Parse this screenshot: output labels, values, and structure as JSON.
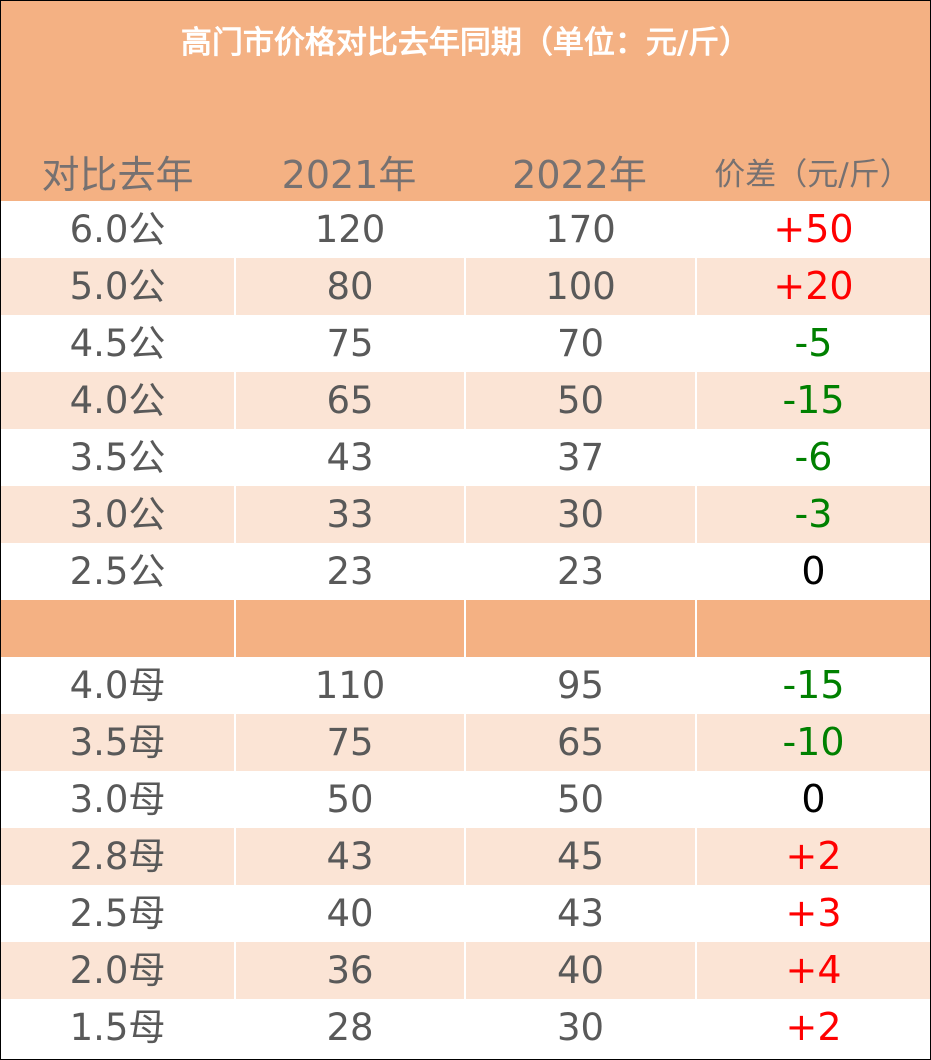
{
  "title": "高门市价格对比去年同期（单位：元/斤）",
  "headers": {
    "category": "对比去年",
    "year2021": "2021年",
    "year2022": "2022年",
    "diff": "价差（元/斤）"
  },
  "rows": [
    {
      "label": "6.0公",
      "y2021": "120",
      "y2022": "170",
      "diff": "+50"
    },
    {
      "label": "5.0公",
      "y2021": "80",
      "y2022": "100",
      "diff": "+20"
    },
    {
      "label": "4.5公",
      "y2021": "75",
      "y2022": "70",
      "diff": "-5"
    },
    {
      "label": "4.0公",
      "y2021": "65",
      "y2022": "50",
      "diff": "-15"
    },
    {
      "label": "3.5公",
      "y2021": "43",
      "y2022": "37",
      "diff": "-6"
    },
    {
      "label": "3.0公",
      "y2021": "33",
      "y2022": "30",
      "diff": "-3"
    },
    {
      "label": "2.5公",
      "y2021": "23",
      "y2022": "23",
      "diff": "0"
    },
    {
      "label": "",
      "y2021": "",
      "y2022": "",
      "diff": ""
    },
    {
      "label": "4.0母",
      "y2021": "110",
      "y2022": "95",
      "diff": "-15"
    },
    {
      "label": "3.5母",
      "y2021": "75",
      "y2022": "65",
      "diff": "-10"
    },
    {
      "label": "3.0母",
      "y2021": "50",
      "y2022": "50",
      "diff": "0"
    },
    {
      "label": "2.8母",
      "y2021": "43",
      "y2022": "45",
      "diff": "+2"
    },
    {
      "label": "2.5母",
      "y2021": "40",
      "y2022": "43",
      "diff": "+3"
    },
    {
      "label": "2.0母",
      "y2021": "36",
      "y2022": "40",
      "diff": "+4"
    },
    {
      "label": "1.5母",
      "y2021": "28",
      "y2022": "30",
      "diff": "+2"
    }
  ],
  "colors": {
    "header_bg": "#f4b183",
    "alt_row_bg": "#fbe4d5",
    "increase": "#ff0000",
    "decrease": "#008000",
    "no_change": "#000000",
    "text": "#595959"
  }
}
